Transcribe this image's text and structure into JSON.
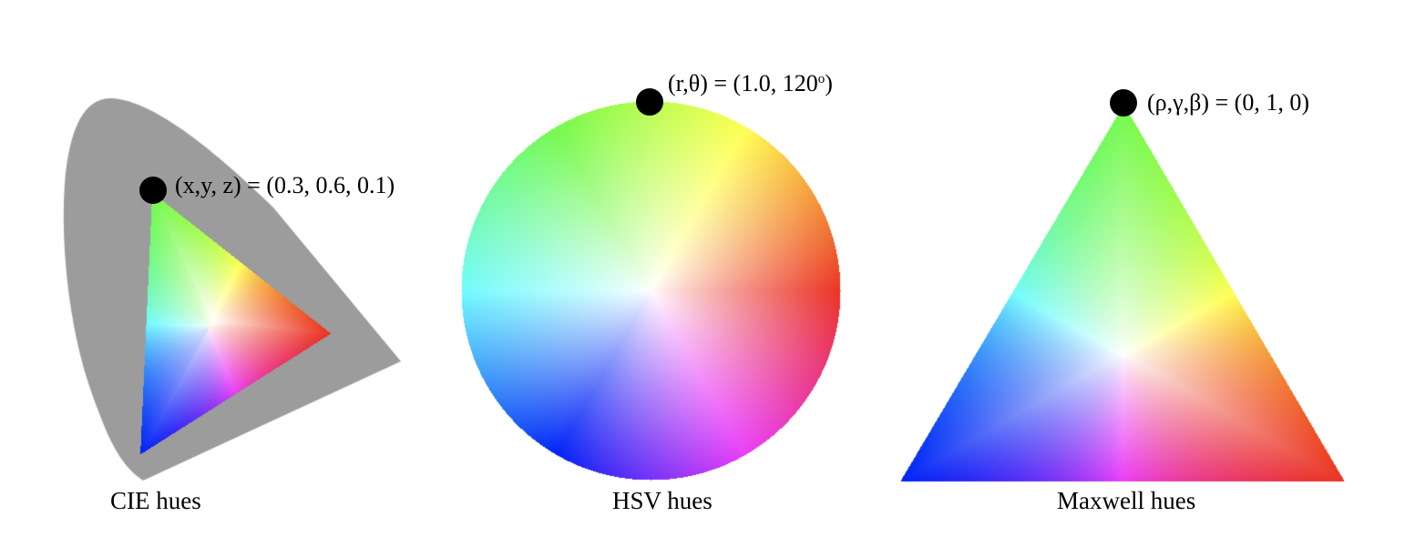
{
  "diagrams": [
    {
      "id": "cie",
      "caption": "CIE hues",
      "point_label": "(x,y, z) = (0.3, 0.6, 0.1)",
      "point": {
        "x": 0.3,
        "y": 0.6,
        "z": 0.1
      }
    },
    {
      "id": "hsv",
      "caption": "HSV hues",
      "point_label_main": "(r,θ) = (1.0, 120",
      "point_label_degree": "o",
      "point_label_close": ")",
      "point": {
        "r": 1.0,
        "theta_deg": 120
      }
    },
    {
      "id": "maxwell",
      "caption": "Maxwell hues",
      "point_label": "(ρ,γ,β) = (0, 1, 0)",
      "point": {
        "rho": 0,
        "gamma": 1,
        "beta": 0
      }
    }
  ],
  "colors": {
    "locus_gray": "#9c9c9c",
    "red": "#ea3323",
    "yellow": "#ffff54",
    "green": "#75f94c",
    "cyan": "#73fbfd",
    "blue": "#0023f5",
    "magenta": "#ea3ff7",
    "white": "#ffffff",
    "dot": "#000000"
  }
}
